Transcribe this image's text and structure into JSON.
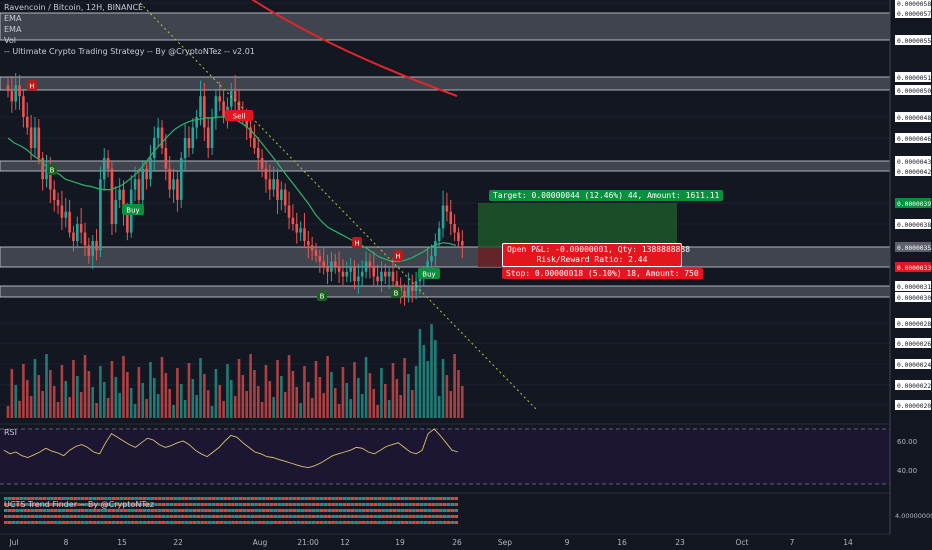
{
  "header": {
    "symbol_line": "Ravencoin / Bitcoin, 12H, BINANCE",
    "indicators": [
      "EMA",
      "EMA",
      "Vol",
      "-- Ultimate Crypto Trading Strategy -- By @CryptoNTez -- v2.01"
    ]
  },
  "rsi_pane": {
    "label": "RSI",
    "ticks": [
      "60.00",
      "40.00"
    ]
  },
  "trend_pane": {
    "label": "UCTS Trend Finder -- By @CryptoNTez",
    "tick": "4.00000000"
  },
  "position": {
    "target_text": "Target: 0.00000044 (12.46%) 44, Amount: 1611.11",
    "pnl_text": "Open P&L: -0.00000001, Qty: 1388888888",
    "rr_text": "Risk/Reward Ratio: 2.44",
    "stop_text": "Stop: 0.00000018 (5.10%) 18, Amount: 750"
  },
  "signals": [
    {
      "text": "Buy",
      "kind": "buy"
    },
    {
      "text": "Sell",
      "kind": "sell"
    },
    {
      "text": "Buy",
      "kind": "buy"
    },
    {
      "text": "H",
      "kind": "h"
    },
    {
      "text": "H",
      "kind": "h"
    },
    {
      "text": "H",
      "kind": "h"
    },
    {
      "text": "B",
      "kind": "b"
    },
    {
      "text": "B",
      "kind": "b"
    },
    {
      "text": "B",
      "kind": "b"
    }
  ],
  "colors": {
    "bg": "#131722",
    "up": "#26a69a",
    "down": "#ef5350",
    "ema_fast": "#2db36b",
    "ema_slow": "#e0262b",
    "zone_fill": "#9598a1",
    "target_fill": "#1e5b2b",
    "stop_fill": "#6b1e22",
    "target_box": "#0a8f3c",
    "stop_box": "#e3161e",
    "rsi_line": "#d9c36a",
    "rsi_bg": "#1f1638",
    "trendline": "#b8c23a"
  },
  "chart_data": {
    "type": "candlestick",
    "title": "Ravencoin / Bitcoin, 12H, BINANCE",
    "ylim": [
      1.9e-06,
      5.9e-06
    ],
    "price_ticks": [
      "0.00000580",
      "0.00000570",
      "0.00000555",
      "0.00000517",
      "0.00000506",
      "0.00000480",
      "0.00000460",
      "0.00000437",
      "0.00000428",
      "0.00000397",
      "0.00000380",
      "0.00000353",
      "0.00000335",
      "0.00000315",
      "0.00000304",
      "0.00000280",
      "0.00000260",
      "0.00000240",
      "0.00000220",
      "0.00000200"
    ],
    "price_tick_values": [
      580,
      570,
      555,
      517,
      506,
      480,
      460,
      437,
      428,
      397,
      380,
      353,
      335,
      315,
      304,
      280,
      260,
      240,
      220,
      200
    ],
    "highlight_ticks": [
      {
        "label": "0.00000397",
        "value": 397,
        "color": "#0a8f3c"
      },
      {
        "label": "0.00000335",
        "value": 335,
        "color": "#e3161e"
      },
      {
        "label": "0.00000353",
        "value": 353,
        "color": "#5d606b"
      }
    ],
    "time_labels": [
      "Jul",
      "8",
      "15",
      "22",
      "Aug",
      "21:00",
      "12",
      "19",
      "26",
      "Sep",
      "9",
      "16",
      "23",
      "Oct",
      "7",
      "14"
    ],
    "price_units": "satoshi (1e-8 BTC)",
    "zones": [
      [
        555,
        570
      ],
      [
        506,
        517
      ],
      [
        428,
        437
      ],
      [
        335,
        353
      ],
      [
        304,
        315
      ]
    ],
    "closes": [
      505,
      495,
      510,
      500,
      480,
      470,
      450,
      470,
      440,
      420,
      430,
      410,
      400,
      395,
      385,
      390,
      370,
      360,
      380,
      370,
      355,
      345,
      360,
      350,
      420,
      440,
      430,
      380,
      400,
      410,
      390,
      370,
      410,
      420,
      400,
      430,
      420,
      440,
      460,
      470,
      450,
      430,
      410,
      420,
      400,
      440,
      460,
      450,
      470,
      480,
      500,
      470,
      450,
      480,
      500,
      495,
      480,
      490,
      505,
      495,
      485,
      480,
      470,
      460,
      450,
      440,
      430,
      420,
      410,
      420,
      400,
      410,
      395,
      385,
      380,
      370,
      375,
      360,
      355,
      350,
      345,
      340,
      335,
      330,
      340,
      335,
      330,
      325,
      330,
      335,
      320,
      325,
      330,
      340,
      335,
      325,
      320,
      330,
      325,
      330,
      320,
      315,
      310,
      305,
      315,
      310,
      320,
      325,
      330,
      340,
      345,
      360,
      375,
      395,
      390,
      380,
      370,
      360,
      355
    ],
    "ema_fast": [
      460,
      455,
      452,
      448,
      442,
      438,
      432,
      428,
      425,
      420,
      418,
      416,
      414,
      413,
      411,
      410,
      410,
      412,
      415,
      420,
      425,
      432,
      440,
      448,
      455,
      462,
      468,
      472,
      475,
      477,
      478,
      479,
      479,
      480,
      480,
      478,
      476,
      472,
      467,
      460,
      452,
      444,
      436,
      428,
      420,
      412,
      404,
      396,
      388,
      382,
      376,
      372,
      368,
      364,
      360,
      356,
      352,
      348,
      344,
      342,
      340,
      340,
      341,
      343,
      346,
      349,
      353,
      356,
      358,
      357,
      355
    ],
    "ema_slow_start": [
      400,
      590
    ],
    "ema_slow_end": [
      457,
      506
    ],
    "rsi_values": [
      52,
      48,
      50,
      46,
      44,
      47,
      50,
      54,
      51,
      49,
      46,
      52,
      56,
      58,
      55,
      50,
      48,
      60,
      70,
      66,
      62,
      58,
      55,
      60,
      65,
      63,
      58,
      55,
      57,
      60,
      62,
      58,
      52,
      48,
      45,
      50,
      55,
      62,
      68,
      66,
      60,
      55,
      50,
      48,
      45,
      44,
      42,
      40,
      38,
      36,
      34,
      33,
      35,
      38,
      42,
      46,
      48,
      50,
      52,
      55,
      54,
      50,
      48,
      52,
      56,
      58,
      60,
      55,
      50,
      48,
      52,
      70,
      75,
      68,
      60,
      52,
      50
    ]
  }
}
